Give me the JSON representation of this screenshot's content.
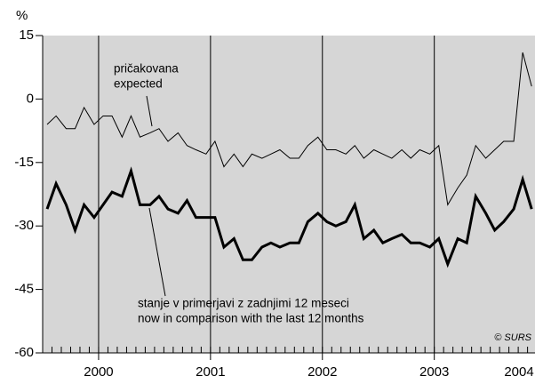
{
  "chart_data": {
    "type": "line",
    "y_unit": "%",
    "x": [
      1999.54,
      1999.62,
      1999.71,
      1999.79,
      1999.87,
      1999.96,
      2000.04,
      2000.12,
      2000.21,
      2000.29,
      2000.37,
      2000.46,
      2000.54,
      2000.62,
      2000.71,
      2000.79,
      2000.87,
      2000.96,
      2001.04,
      2001.12,
      2001.21,
      2001.29,
      2001.37,
      2001.46,
      2001.54,
      2001.62,
      2001.71,
      2001.79,
      2001.87,
      2001.96,
      2002.04,
      2002.12,
      2002.21,
      2002.29,
      2002.37,
      2002.46,
      2002.54,
      2002.62,
      2002.71,
      2002.79,
      2002.87,
      2002.96,
      2003.04,
      2003.12,
      2003.21,
      2003.29,
      2003.37,
      2003.46,
      2003.54,
      2003.62,
      2003.71,
      2003.79,
      2003.87
    ],
    "series": [
      {
        "name": "pričakovana / expected",
        "color": "#000000",
        "width": 1,
        "values": [
          -6,
          -4,
          -7,
          -7,
          -2,
          -6,
          -4,
          -4,
          -9,
          -4,
          -9,
          -8,
          -7,
          -10,
          -8,
          -11,
          -12,
          -13,
          -10,
          -16,
          -13,
          -16,
          -13,
          -14,
          -13,
          -12,
          -14,
          -14,
          -11,
          -9,
          -12,
          -12,
          -13,
          -11,
          -14,
          -12,
          -13,
          -14,
          -12,
          -14,
          -12,
          -13,
          -11,
          -25,
          -21,
          -18,
          -11,
          -14,
          -12,
          -10,
          -10,
          11,
          3
        ]
      },
      {
        "name": "stanje v primerjavi z zadnjimi 12 meseci / now in comparison with the last 12 months",
        "color": "#000000",
        "width": 3,
        "values": [
          -26,
          -20,
          -25,
          -31,
          -25,
          -28,
          -25,
          -22,
          -23,
          -17,
          -25,
          -25,
          -23,
          -26,
          -27,
          -24,
          -28,
          -28,
          -28,
          -35,
          -33,
          -38,
          -38,
          -35,
          -34,
          -35,
          -34,
          -34,
          -29,
          -27,
          -29,
          -30,
          -29,
          -25,
          -33,
          -31,
          -34,
          -33,
          -32,
          -34,
          -34,
          -35,
          -33,
          -39,
          -33,
          -34,
          -23,
          -27,
          -31,
          -29,
          -26,
          -19,
          -26
        ]
      }
    ],
    "annotations": [
      {
        "lines": [
          "pričakovana",
          "expected"
        ]
      },
      {
        "lines": [
          "stanje v primerjavi z zadnjimi 12 meseci",
          "now in comparison with the last 12 months"
        ]
      }
    ],
    "source": "© SURS",
    "xlim": [
      1999.5,
      2003.9
    ],
    "xticks": [
      2000,
      2001,
      2002,
      2003,
      2004
    ],
    "ylim": [
      -60,
      15
    ],
    "yticks": [
      15,
      0,
      -15,
      -30,
      -45,
      -60
    ],
    "background": "#d6d6d6",
    "grid": false
  }
}
